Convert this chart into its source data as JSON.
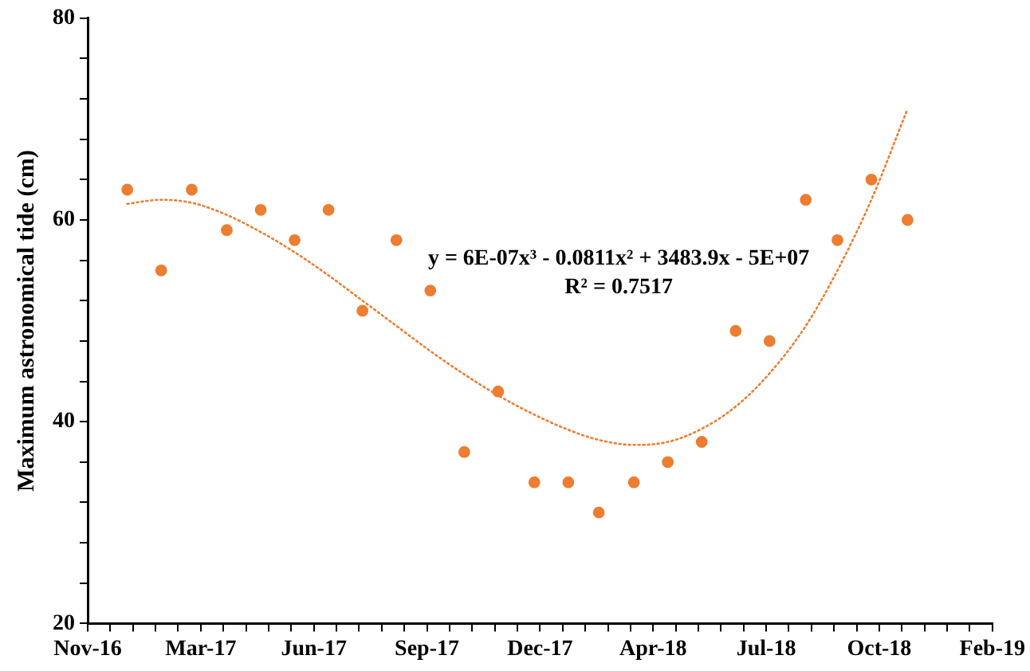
{
  "chart_data": {
    "type": "scatter",
    "ylabel": "Maximum astronomical tide (cm)",
    "annotations": [
      "y = 6E-07x³ - 0.0811x² + 3483.9x - 5E+07",
      "R² = 0.7517"
    ],
    "x": [
      "2016-12-31",
      "2017-01-30",
      "2017-02-26",
      "2017-03-29",
      "2017-04-28",
      "2017-05-28",
      "2017-06-27",
      "2017-07-27",
      "2017-08-26",
      "2017-09-25",
      "2017-10-25",
      "2017-11-24",
      "2017-12-26",
      "2018-01-25",
      "2018-02-21",
      "2018-03-24",
      "2018-04-23",
      "2018-05-23",
      "2018-06-22",
      "2018-07-22",
      "2018-08-23",
      "2018-09-20",
      "2018-10-20",
      "2018-11-21"
    ],
    "series": [
      {
        "type": "scatter",
        "color": "#ed7d31",
        "marker": "circle",
        "values": [
          63,
          55,
          63,
          59,
          61,
          58,
          61,
          51,
          58,
          53,
          37,
          43,
          34,
          34,
          31,
          34,
          36,
          38,
          49,
          48,
          62,
          58,
          64,
          60
        ]
      },
      {
        "type": "line",
        "color": "#ed7d31",
        "marker": "none",
        "line_style": "dotted",
        "values": [
          61.6,
          62,
          61.7,
          60.5,
          58.8,
          56.8,
          54.5,
          52,
          49.5,
          47,
          44.7,
          42.6,
          40.7,
          39.2,
          38.2,
          37.7,
          38,
          39.3,
          41.5,
          44.8,
          49.5,
          55,
          62,
          71
        ]
      }
    ],
    "xlim": [
      "2016-11-26",
      "2019-02-04"
    ],
    "xticks": [
      {
        "value": "2016-11-26",
        "label": "Nov-16"
      },
      {
        "value": "2016-12-16",
        "label": null
      },
      {
        "value": "2017-01-05",
        "label": null
      },
      {
        "value": "2017-01-25",
        "label": null
      },
      {
        "value": "2017-02-14",
        "label": null
      },
      {
        "value": "2017-03-06",
        "label": "Mar-17"
      },
      {
        "value": "2017-03-26",
        "label": null
      },
      {
        "value": "2017-04-15",
        "label": null
      },
      {
        "value": "2017-05-05",
        "label": null
      },
      {
        "value": "2017-05-25",
        "label": null
      },
      {
        "value": "2017-06-14",
        "label": "Jun-17"
      },
      {
        "value": "2017-07-04",
        "label": null
      },
      {
        "value": "2017-07-24",
        "label": null
      },
      {
        "value": "2017-08-13",
        "label": null
      },
      {
        "value": "2017-09-02",
        "label": null
      },
      {
        "value": "2017-09-22",
        "label": "Sep-17"
      },
      {
        "value": "2017-10-12",
        "label": null
      },
      {
        "value": "2017-11-01",
        "label": null
      },
      {
        "value": "2017-11-21",
        "label": null
      },
      {
        "value": "2017-12-11",
        "label": null
      },
      {
        "value": "2017-12-31",
        "label": "Dec-17"
      },
      {
        "value": "2018-01-20",
        "label": null
      },
      {
        "value": "2018-02-09",
        "label": null
      },
      {
        "value": "2018-03-01",
        "label": null
      },
      {
        "value": "2018-03-21",
        "label": null
      },
      {
        "value": "2018-04-10",
        "label": "Apr-18"
      },
      {
        "value": "2018-04-30",
        "label": null
      },
      {
        "value": "2018-05-20",
        "label": null
      },
      {
        "value": "2018-06-09",
        "label": null
      },
      {
        "value": "2018-06-29",
        "label": null
      },
      {
        "value": "2018-07-19",
        "label": "Jul-18"
      },
      {
        "value": "2018-08-08",
        "label": null
      },
      {
        "value": "2018-08-28",
        "label": null
      },
      {
        "value": "2018-09-17",
        "label": null
      },
      {
        "value": "2018-10-07",
        "label": null
      },
      {
        "value": "2018-10-27",
        "label": "Oct-18"
      },
      {
        "value": "2018-11-16",
        "label": null
      },
      {
        "value": "2018-12-06",
        "label": null
      },
      {
        "value": "2018-12-26",
        "label": null
      },
      {
        "value": "2019-01-15",
        "label": null
      },
      {
        "value": "2019-02-04",
        "label": "Feb-19"
      }
    ],
    "ylim": [
      20,
      80
    ],
    "yticks": [
      20,
      {
        "value": 24,
        "label": null
      },
      {
        "value": 28,
        "label": null
      },
      {
        "value": 32,
        "label": null
      },
      {
        "value": 36,
        "label": null
      },
      40,
      {
        "value": 44,
        "label": null
      },
      {
        "value": 48,
        "label": null
      },
      {
        "value": 52,
        "label": null
      },
      {
        "value": 56,
        "label": null
      },
      60,
      {
        "value": 64,
        "label": null
      },
      {
        "value": 68,
        "label": null
      },
      {
        "value": 72,
        "label": null
      },
      {
        "value": 76,
        "label": null
      },
      80
    ],
    "grid": false,
    "legend": false
  }
}
